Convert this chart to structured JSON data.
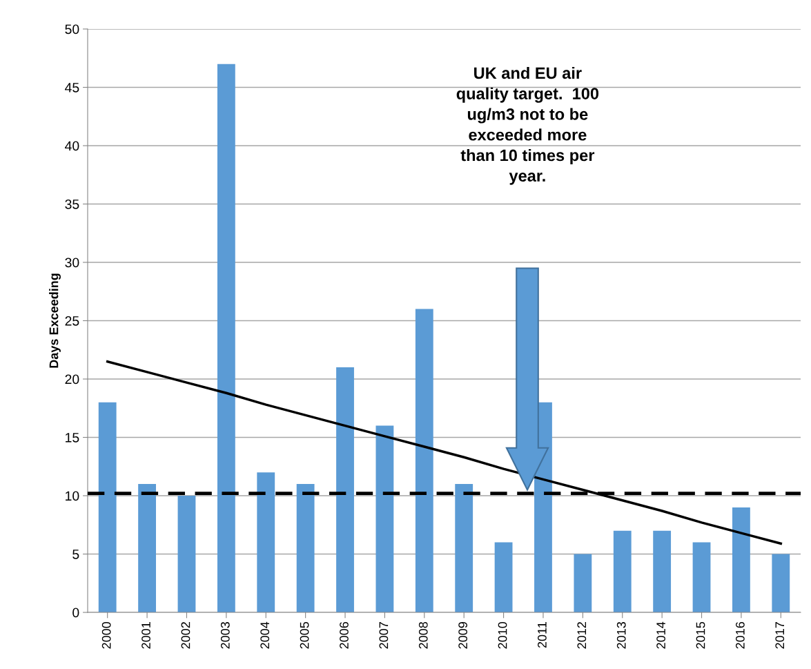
{
  "chart_data": {
    "type": "bar",
    "ylabel": "Days Exceeding",
    "categories": [
      "2000",
      "2001",
      "2002",
      "2003",
      "2004",
      "2005",
      "2006",
      "2007",
      "2008",
      "2009",
      "2010",
      "2011",
      "2012",
      "2013",
      "2014",
      "2015",
      "2016",
      "2017"
    ],
    "series": [
      {
        "color": "#5b9bd5",
        "values": [
          18,
          11,
          10,
          47,
          12,
          11,
          21,
          16,
          26,
          11,
          6,
          18,
          5,
          7,
          7,
          6,
          9,
          5
        ]
      },
      {
        "type": "line",
        "color": "#000000",
        "values": [
          21.5,
          20.6,
          19.7,
          18.8,
          17.8,
          16.9,
          16.0,
          15.1,
          14.2,
          13.3,
          12.3,
          11.4,
          10.5,
          9.6,
          8.7,
          7.7,
          6.8,
          5.9
        ]
      }
    ],
    "ylim": [
      0,
      50
    ],
    "yticks": [
      0,
      5,
      10,
      15,
      20,
      25,
      30,
      35,
      40,
      45,
      50
    ],
    "grid": "y",
    "legend": false,
    "ref_lines": [
      {
        "axis": "y",
        "value": 10.2,
        "color": "#000000",
        "line_style": "dashed"
      }
    ],
    "annotations": [
      "UK and EU air\nquality target.  100\nug/m3 not to be\nexceeded more\nthan 10 times per\nyear."
    ]
  }
}
